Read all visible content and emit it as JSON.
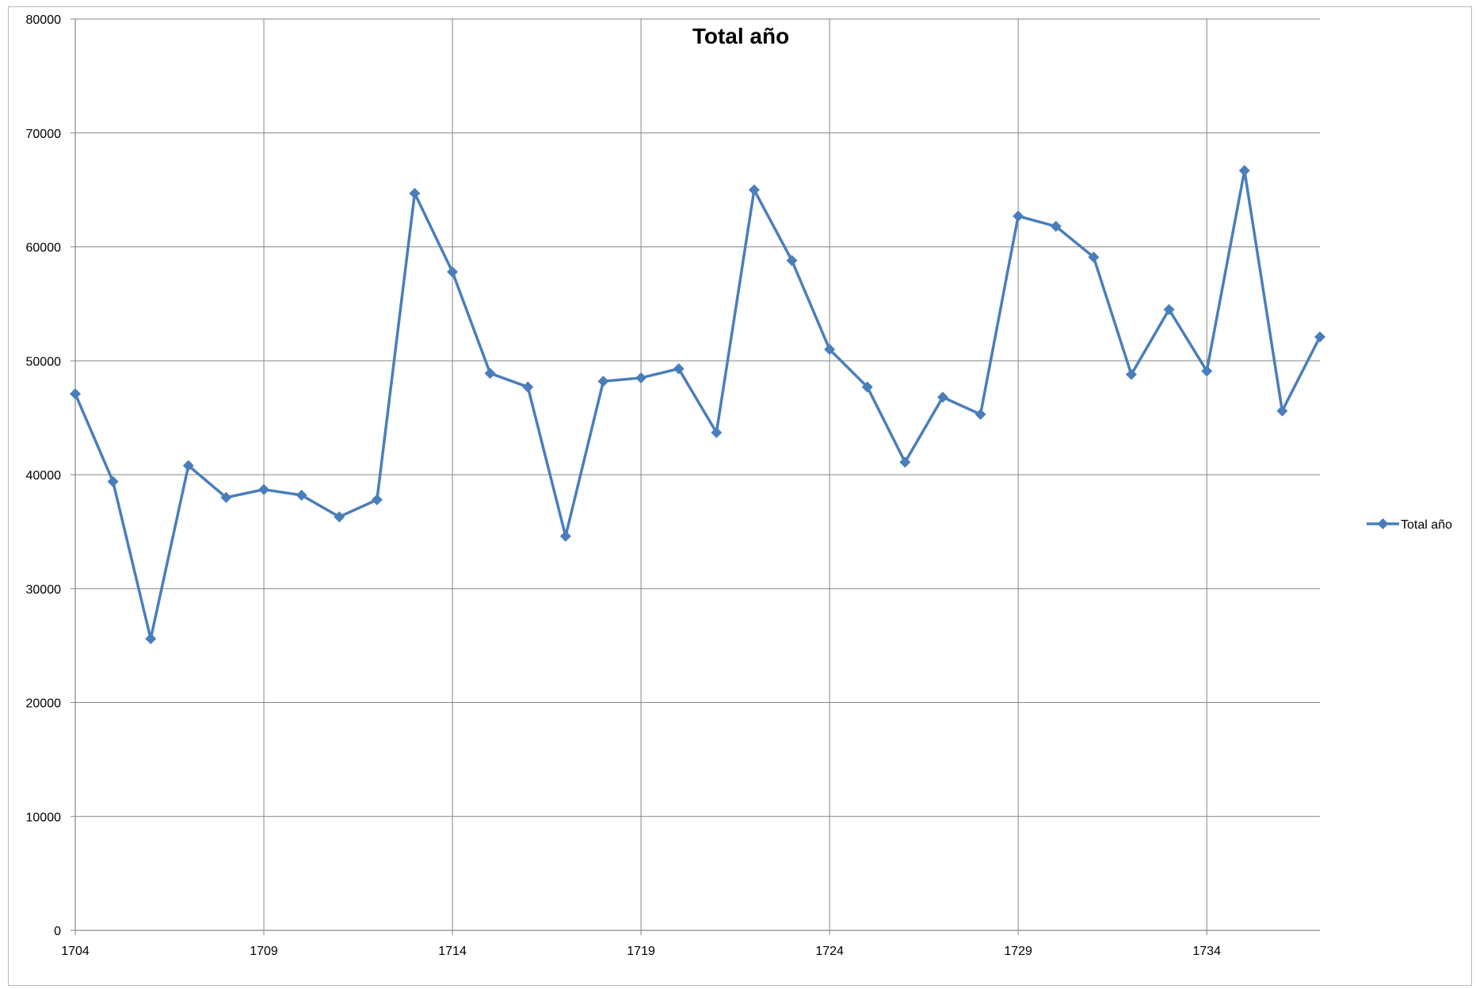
{
  "chart_data": {
    "type": "line",
    "title": "Total año",
    "xlabel": "",
    "ylabel": "",
    "ylim": [
      0,
      80000
    ],
    "xlim": [
      1704,
      1737
    ],
    "grid": true,
    "legend_position": "right",
    "y_ticks": [
      "0",
      "10000",
      "20000",
      "30000",
      "40000",
      "50000",
      "60000",
      "70000",
      "80000"
    ],
    "x_ticks": [
      "1704",
      "1709",
      "1714",
      "1719",
      "1724",
      "1729",
      "1734"
    ],
    "x_tick_values": [
      1704,
      1709,
      1714,
      1719,
      1724,
      1729,
      1734
    ],
    "y_tick_values": [
      0,
      10000,
      20000,
      30000,
      40000,
      50000,
      60000,
      70000,
      80000
    ],
    "series": [
      {
        "name": "Total año",
        "color": "#4a7ebb",
        "marker": "diamond",
        "x": [
          1704,
          1705,
          1706,
          1707,
          1708,
          1709,
          1710,
          1711,
          1712,
          1713,
          1714,
          1715,
          1716,
          1717,
          1718,
          1719,
          1720,
          1721,
          1722,
          1723,
          1724,
          1725,
          1726,
          1727,
          1728,
          1729,
          1730,
          1731,
          1732,
          1733,
          1734,
          1735,
          1736,
          1737
        ],
        "values": [
          47100,
          39400,
          25600,
          40800,
          38000,
          38700,
          38200,
          36300,
          37800,
          64700,
          57800,
          48900,
          47700,
          34600,
          48200,
          48500,
          49300,
          43700,
          65000,
          58800,
          51000,
          47700,
          41100,
          46800,
          45300,
          62700,
          61800,
          59100,
          48800,
          54500,
          49100,
          66700,
          45600,
          52100
        ]
      }
    ]
  }
}
